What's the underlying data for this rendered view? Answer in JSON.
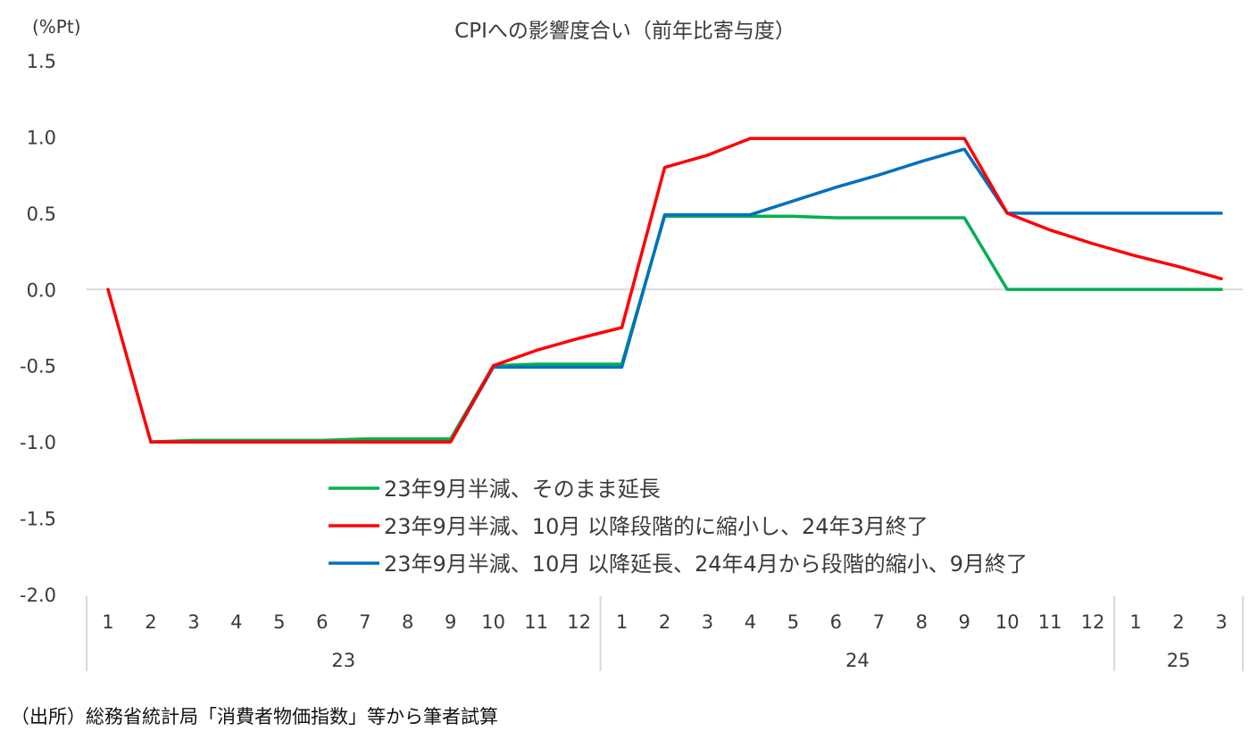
{
  "chart_data": {
    "type": "line",
    "title": "CPIへの影響度合い（前年比寄与度）",
    "y_unit": "(%Pt)",
    "ylim": [
      -2.0,
      1.5
    ],
    "yticks": [
      "1.5",
      "1.0",
      "0.5",
      "0.0",
      "-0.5",
      "-1.0",
      "-1.5",
      "-2.0"
    ],
    "ytick_values": [
      1.5,
      1.0,
      0.5,
      0.0,
      -0.5,
      -1.0,
      -1.5,
      -2.0
    ],
    "months": [
      "1",
      "2",
      "3",
      "4",
      "5",
      "6",
      "7",
      "8",
      "9",
      "10",
      "11",
      "12",
      "1",
      "2",
      "3",
      "4",
      "5",
      "6",
      "7",
      "8",
      "9",
      "10",
      "11",
      "12",
      "1",
      "2",
      "3"
    ],
    "years": [
      {
        "label": "23",
        "start": 0,
        "end": 11
      },
      {
        "label": "24",
        "start": 12,
        "end": 23
      },
      {
        "label": "25",
        "start": 24,
        "end": 26
      }
    ],
    "grid": false,
    "zero_line": true,
    "legend_position": "bottom-center",
    "series": [
      {
        "name": "23年9月半減、そのまま延長",
        "color": "#00B050",
        "start_index": 1,
        "values": [
          -1.0,
          -0.99,
          -0.99,
          -0.99,
          -0.99,
          -0.98,
          -0.98,
          -0.98,
          -0.5,
          -0.49,
          -0.49,
          -0.49,
          0.48,
          0.48,
          0.48,
          0.48,
          0.47,
          0.47,
          0.47,
          0.47,
          0.0,
          0.0,
          0.0,
          0.0,
          0.0,
          0.0
        ]
      },
      {
        "name": "23年9月半減、10月 以降段階的に縮小し、24年3月終了",
        "color": "#FF0000",
        "start_index": 0,
        "values": [
          0.0,
          -1.0,
          -1.0,
          -1.0,
          -1.0,
          -1.0,
          -1.0,
          -1.0,
          -1.0,
          -0.5,
          -0.4,
          -0.32,
          -0.25,
          0.8,
          0.88,
          0.99,
          0.99,
          0.99,
          0.99,
          0.99,
          0.99,
          0.5,
          0.39,
          0.3,
          0.22,
          0.15,
          0.07
        ]
      },
      {
        "name": "23年9月半減、10月 以降延長、24年4月から段階的縮小、9月終了",
        "color": "#0070C0",
        "start_index": 1,
        "values": [
          -1.0,
          -1.0,
          -1.0,
          -1.0,
          -1.0,
          -1.0,
          -1.0,
          -1.0,
          -0.51,
          -0.51,
          -0.51,
          -0.51,
          0.49,
          0.49,
          0.49,
          0.58,
          0.67,
          0.75,
          0.84,
          0.92,
          0.5,
          0.5,
          0.5,
          0.5,
          0.5,
          0.5
        ]
      }
    ]
  },
  "source": "（出所）総務省統計局「消費者物価指数」等から筆者試算"
}
